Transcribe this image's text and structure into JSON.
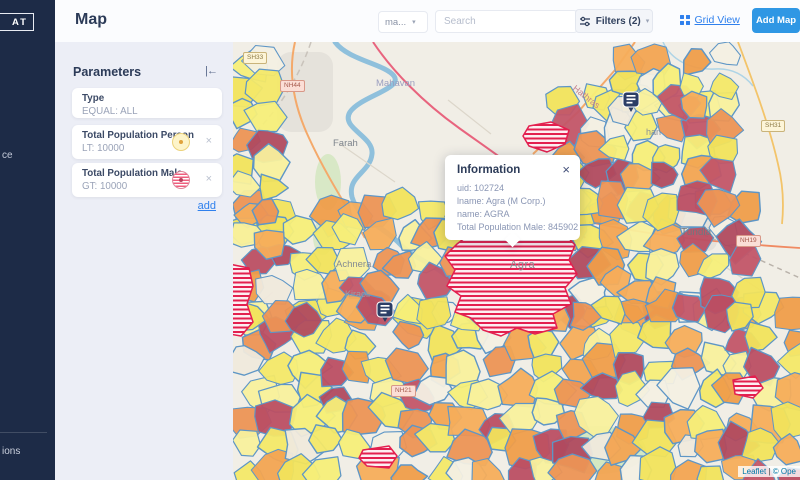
{
  "app": {
    "logo_text": "AT"
  },
  "sidebar": {
    "item_partial_top": "ce",
    "item_partial_bottom": "ions"
  },
  "header": {
    "title": "Map",
    "type_dropdown_value": "ma...",
    "search_placeholder": "Search",
    "filters_label": "Filters (2)",
    "grid_view_label": "Grid View",
    "add_map_label": "Add Map"
  },
  "parameters": {
    "title": "Parameters",
    "collapse_label": "|←",
    "add_label": "add",
    "filters": [
      {
        "name": "Type",
        "condition": "EQUAL: ALL",
        "icon": "none",
        "closable": false
      },
      {
        "name": "Total Population Person",
        "condition": "LT: 10000",
        "icon": "yellow-circle-icon",
        "closable": true
      },
      {
        "name": "Total Population Male",
        "condition": "GT: 10000",
        "icon": "striped-circle-icon",
        "closable": true
      }
    ]
  },
  "map": {
    "popup": {
      "title": "Information",
      "close_icon": "×",
      "lines": [
        "uid: 102724",
        "lname: Agra (M Corp.)",
        "name: AGRA",
        "Total Population Male: 845902"
      ]
    },
    "labels": {
      "mahavan": "Mahavan",
      "farah": "Farah",
      "hathras": "Hathras",
      "barhan": "han",
      "tundla": "Tundla",
      "achnera": "Achnera",
      "kiraoli": "Kiraoli",
      "agra": "Agra"
    },
    "road_badges": {
      "sh33": "SH33",
      "nh44": "NH44",
      "sh31": "SH31",
      "nh19": "NH19",
      "nh21": "NH21"
    },
    "attribution": {
      "leaflet": "Leaflet",
      "separator": " | ",
      "osm": "© Ope"
    },
    "colors": {
      "cell_border": "#5e96c6",
      "cell_yellows": [
        "#f6ee79",
        "#f1e35c",
        "#f3e868",
        "#f8f09d"
      ],
      "cell_oranges": [
        "#f2a452",
        "#ef9d4a",
        "#f5ad5b",
        "#ec9355"
      ],
      "cell_maroons": [
        "#bb4e63",
        "#b04a5f",
        "#c25568"
      ],
      "cell_creams": [
        "#f3efe3",
        "#efe9dc"
      ],
      "hatch_red": "#e3204f",
      "marker_navy": "#2c3e66",
      "accent_blue": "#2f80ed",
      "button_blue": "#2f97e4"
    }
  }
}
